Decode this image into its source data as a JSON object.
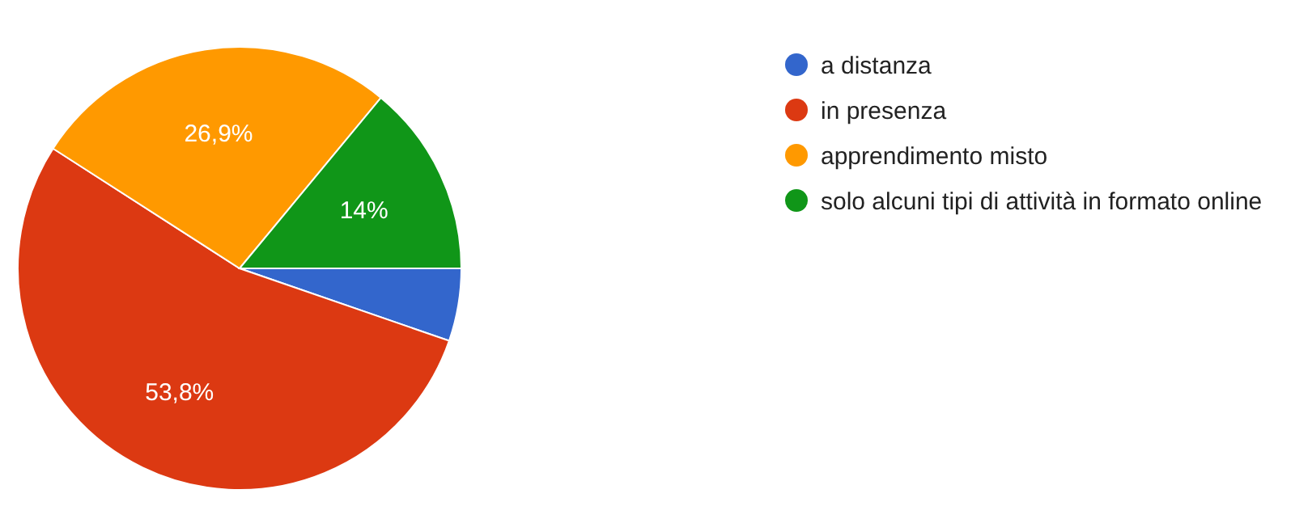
{
  "chart_data": {
    "type": "pie",
    "categories": [
      "a distanza",
      "in presenza",
      "apprendimento misto",
      "solo alcuni tipi di attività in formato online"
    ],
    "values": [
      5.3,
      53.8,
      26.9,
      14
    ],
    "colors": [
      "#3366cc",
      "#dc3912",
      "#ff9900",
      "#109618"
    ],
    "value_labels": [
      null,
      "53,8%",
      "26,9%",
      "14%"
    ],
    "legend": "right"
  }
}
